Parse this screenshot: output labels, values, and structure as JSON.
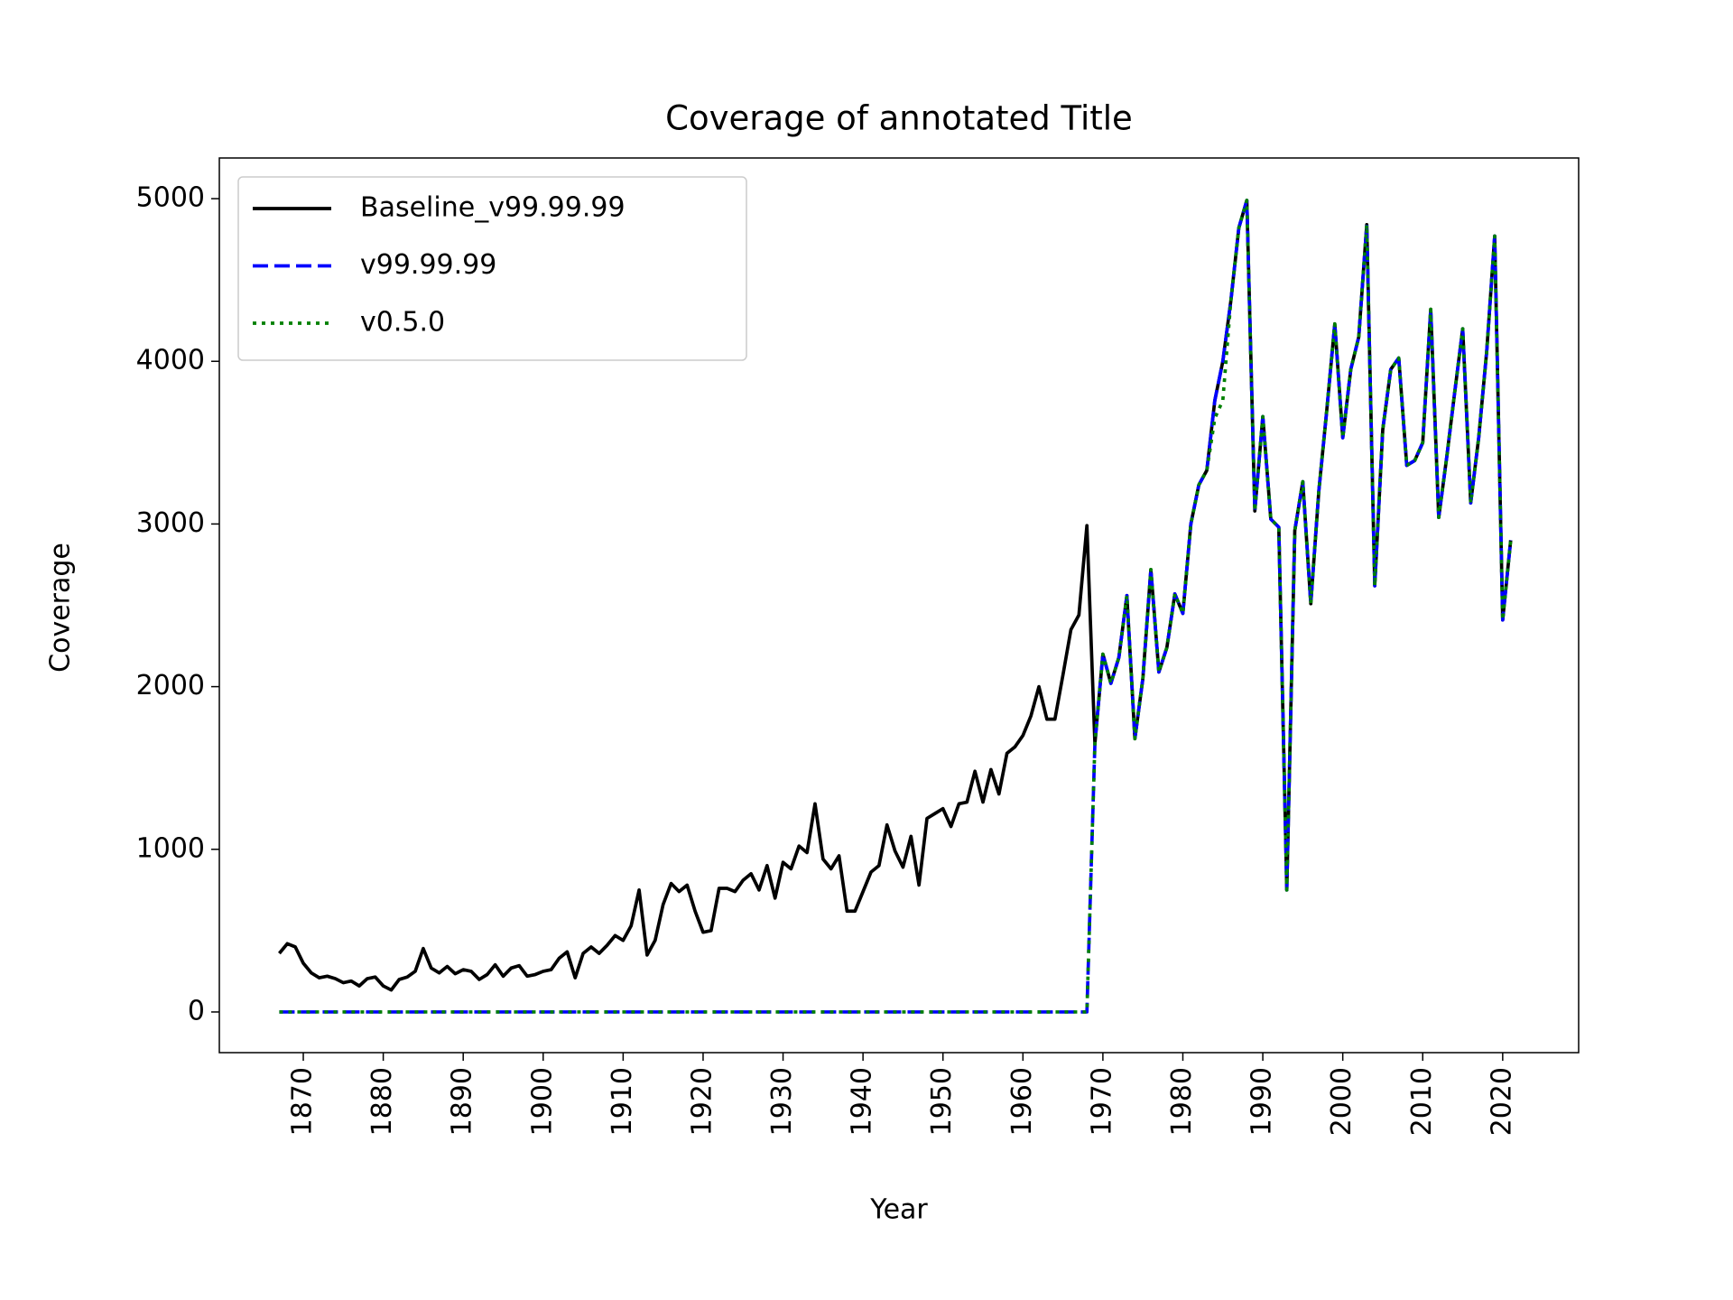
{
  "chart_data": {
    "type": "line",
    "title": "Coverage of annotated Title",
    "x_label": "Year",
    "y_label": "Coverage",
    "x": [
      1867,
      1868,
      1869,
      1870,
      1871,
      1872,
      1873,
      1874,
      1875,
      1876,
      1877,
      1878,
      1879,
      1880,
      1881,
      1882,
      1883,
      1884,
      1885,
      1886,
      1887,
      1888,
      1889,
      1890,
      1891,
      1892,
      1893,
      1894,
      1895,
      1896,
      1897,
      1898,
      1899,
      1900,
      1901,
      1902,
      1903,
      1904,
      1905,
      1906,
      1907,
      1908,
      1909,
      1910,
      1911,
      1912,
      1913,
      1914,
      1915,
      1916,
      1917,
      1918,
      1919,
      1920,
      1921,
      1922,
      1923,
      1924,
      1925,
      1926,
      1927,
      1928,
      1929,
      1930,
      1931,
      1932,
      1933,
      1934,
      1935,
      1936,
      1937,
      1938,
      1939,
      1940,
      1941,
      1942,
      1943,
      1944,
      1945,
      1946,
      1947,
      1948,
      1949,
      1950,
      1951,
      1952,
      1953,
      1954,
      1955,
      1956,
      1957,
      1958,
      1959,
      1960,
      1961,
      1962,
      1963,
      1964,
      1965,
      1966,
      1967,
      1968,
      1969,
      1970,
      1971,
      1972,
      1973,
      1974,
      1975,
      1976,
      1977,
      1978,
      1979,
      1980,
      1981,
      1982,
      1983,
      1984,
      1985,
      1986,
      1987,
      1988,
      1989,
      1990,
      1991,
      1992,
      1993,
      1994,
      1995,
      1996,
      1997,
      1998,
      1999,
      2000,
      2001,
      2002,
      2003,
      2004,
      2005,
      2006,
      2007,
      2008,
      2009,
      2010,
      2011,
      2012,
      2013,
      2014,
      2015,
      2016,
      2017,
      2018,
      2019,
      2020,
      2021
    ],
    "series": [
      {
        "name": "Baseline_v99.99.99",
        "color": "#000000",
        "style": "solid",
        "values": [
          360,
          420,
          400,
          300,
          240,
          210,
          220,
          205,
          180,
          190,
          160,
          205,
          215,
          160,
          135,
          200,
          215,
          250,
          390,
          270,
          240,
          280,
          235,
          260,
          250,
          200,
          230,
          290,
          220,
          270,
          285,
          220,
          230,
          250,
          260,
          330,
          370,
          210,
          360,
          400,
          360,
          410,
          470,
          440,
          530,
          750,
          350,
          440,
          660,
          790,
          740,
          780,
          620,
          490,
          500,
          760,
          760,
          740,
          810,
          850,
          750,
          900,
          700,
          920,
          880,
          1020,
          980,
          1280,
          940,
          880,
          960,
          620,
          620,
          740,
          860,
          900,
          1150,
          990,
          890,
          1080,
          780,
          1190,
          1220,
          1250,
          1140,
          1280,
          1290,
          1480,
          1290,
          1490,
          1340,
          1590,
          1630,
          1700,
          1820,
          2000,
          1800,
          1800,
          2070,
          2350,
          2440,
          2990,
          1650,
          2200,
          2020,
          2180,
          2560,
          1680,
          2050,
          2720,
          2090,
          2240,
          2570,
          2450,
          3000,
          3240,
          3330,
          3760,
          4000,
          4370,
          4820,
          4990,
          3080,
          3660,
          3030,
          2980,
          750,
          2960,
          3260,
          2510,
          3200,
          3700,
          4230,
          3530,
          3950,
          4150,
          4840,
          2620,
          3580,
          3950,
          4020,
          3360,
          3390,
          3500,
          4320,
          3040,
          3410,
          3810,
          4200,
          3130,
          3530,
          4060,
          4770,
          2410,
          2900
        ]
      },
      {
        "name": "v99.99.99",
        "color": "#0000ff",
        "style": "dashed",
        "values": [
          0,
          0,
          0,
          0,
          0,
          0,
          0,
          0,
          0,
          0,
          0,
          0,
          0,
          0,
          0,
          0,
          0,
          0,
          0,
          0,
          0,
          0,
          0,
          0,
          0,
          0,
          0,
          0,
          0,
          0,
          0,
          0,
          0,
          0,
          0,
          0,
          0,
          0,
          0,
          0,
          0,
          0,
          0,
          0,
          0,
          0,
          0,
          0,
          0,
          0,
          0,
          0,
          0,
          0,
          0,
          0,
          0,
          0,
          0,
          0,
          0,
          0,
          0,
          0,
          0,
          0,
          0,
          0,
          0,
          0,
          0,
          0,
          0,
          0,
          0,
          0,
          0,
          0,
          0,
          0,
          0,
          0,
          0,
          0,
          0,
          0,
          0,
          0,
          0,
          0,
          0,
          0,
          0,
          0,
          0,
          0,
          0,
          0,
          0,
          0,
          0,
          0,
          1650,
          2200,
          2020,
          2180,
          2560,
          1680,
          2050,
          2720,
          2090,
          2240,
          2570,
          2450,
          3000,
          3240,
          3330,
          3760,
          4000,
          4370,
          4820,
          4990,
          3080,
          3660,
          3030,
          2980,
          750,
          2960,
          3260,
          2510,
          3200,
          3700,
          4230,
          3530,
          3950,
          4150,
          4840,
          2620,
          3580,
          3950,
          4020,
          3360,
          3390,
          3500,
          4320,
          3040,
          3410,
          3810,
          4200,
          3130,
          3530,
          4060,
          4770,
          2410,
          2900
        ]
      },
      {
        "name": "v0.5.0",
        "color": "#008000",
        "style": "dotted",
        "values": [
          0,
          0,
          0,
          0,
          0,
          0,
          0,
          0,
          0,
          0,
          0,
          0,
          0,
          0,
          0,
          0,
          0,
          0,
          0,
          0,
          0,
          0,
          0,
          0,
          0,
          0,
          0,
          0,
          0,
          0,
          0,
          0,
          0,
          0,
          0,
          0,
          0,
          0,
          0,
          0,
          0,
          0,
          0,
          0,
          0,
          0,
          0,
          0,
          0,
          0,
          0,
          0,
          0,
          0,
          0,
          0,
          0,
          0,
          0,
          0,
          0,
          0,
          0,
          0,
          0,
          0,
          0,
          0,
          0,
          0,
          0,
          0,
          0,
          0,
          0,
          0,
          0,
          0,
          0,
          0,
          0,
          0,
          0,
          0,
          0,
          0,
          0,
          0,
          0,
          0,
          0,
          0,
          0,
          0,
          0,
          0,
          0,
          0,
          0,
          0,
          0,
          0,
          1650,
          2200,
          2020,
          2180,
          2560,
          1680,
          2050,
          2720,
          2090,
          2240,
          2570,
          2450,
          3000,
          3240,
          3330,
          3650,
          3760,
          4370,
          4820,
          4990,
          3080,
          3660,
          3030,
          2980,
          750,
          2960,
          3260,
          2510,
          3200,
          3700,
          4230,
          3530,
          3950,
          4150,
          4840,
          2620,
          3580,
          3950,
          4020,
          3360,
          3390,
          3500,
          4320,
          3040,
          3410,
          3810,
          4200,
          3130,
          3530,
          4060,
          4770,
          2410,
          2900
        ]
      }
    ],
    "xlim": [
      1859.5,
      2029.5
    ],
    "ylim": [
      -250,
      5250
    ],
    "xticks": [
      1870,
      1880,
      1890,
      1900,
      1910,
      1920,
      1930,
      1940,
      1950,
      1960,
      1970,
      1980,
      1990,
      2000,
      2010,
      2020
    ],
    "yticks": [
      0,
      1000,
      2000,
      3000,
      4000,
      5000
    ],
    "grid": false,
    "legend": "upper left"
  }
}
